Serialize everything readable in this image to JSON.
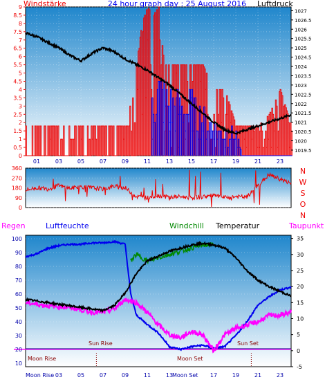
{
  "title": "24 hour graph day : 25 August 2016",
  "colors": {
    "red": "#ee0000",
    "blue": "#0000ee",
    "black": "#000000",
    "green": "#008800",
    "magenta": "#ff00ff",
    "navy": "#000080",
    "bg_top": "#2a8fd0",
    "bg_bottom": "#ffffff"
  },
  "chart_data": [
    {
      "type": "bar",
      "name": "wind-and-pressure",
      "left_label": "Windstärke",
      "right_label": "Luftdruck",
      "left_ticks": [
        0,
        0.5,
        1,
        1.5,
        2,
        2.5,
        3,
        3.5,
        4,
        4.5,
        5,
        5.5,
        6,
        6.5,
        7,
        7.5,
        8,
        8.5,
        9
      ],
      "right_ticks": [
        1019.5,
        1020,
        1020.5,
        1021,
        1021.5,
        1022,
        1022.5,
        1023,
        1023.5,
        1024,
        1024.5,
        1025,
        1025.5,
        1026,
        1026.5,
        1027
      ],
      "x_ticks": [
        "01",
        "03",
        "05",
        "07",
        "09",
        "11",
        "13",
        "15",
        "17",
        "19",
        "21",
        "23"
      ],
      "ylim_left": [
        0,
        9
      ],
      "ylim_right": [
        1019.2,
        1027.2
      ],
      "xlim": [
        0,
        24
      ],
      "gust_red_max": [
        [
          0,
          1.8
        ],
        [
          1,
          1.8
        ],
        [
          2,
          1.8
        ],
        [
          3,
          1.8
        ],
        [
          4,
          1.8
        ],
        [
          5,
          1.8
        ],
        [
          6,
          1.8
        ],
        [
          7,
          1.8
        ],
        [
          8,
          1.8
        ],
        [
          9,
          1.8
        ],
        [
          9.5,
          4
        ],
        [
          10,
          5.5
        ],
        [
          10.5,
          8
        ],
        [
          11,
          9
        ],
        [
          11.5,
          8.5
        ],
        [
          12,
          9
        ],
        [
          12.5,
          5.5
        ],
        [
          13,
          5.5
        ],
        [
          13.5,
          5.5
        ],
        [
          14,
          5.5
        ],
        [
          15,
          5.5
        ],
        [
          16,
          5.5
        ],
        [
          17,
          4
        ],
        [
          18,
          4
        ],
        [
          19,
          1.8
        ],
        [
          20,
          1.8
        ],
        [
          21,
          1.8
        ],
        [
          22,
          2.5
        ],
        [
          23,
          4
        ],
        [
          24,
          1.8
        ]
      ],
      "wind_blue_max": [
        [
          9.5,
          1.8
        ],
        [
          10,
          3
        ],
        [
          10.5,
          4.5
        ],
        [
          11,
          5.5
        ],
        [
          11.5,
          5
        ],
        [
          12,
          5.5
        ],
        [
          13,
          4.5
        ],
        [
          14,
          4
        ],
        [
          15,
          4
        ],
        [
          16,
          3
        ],
        [
          17,
          2.5
        ],
        [
          18,
          1.8
        ],
        [
          19,
          1.8
        ],
        [
          19.5,
          0
        ],
        [
          24,
          0
        ]
      ],
      "pressure": [
        [
          0,
          1025.8
        ],
        [
          1,
          1025.6
        ],
        [
          2,
          1025.3
        ],
        [
          3,
          1025.0
        ],
        [
          4,
          1024.6
        ],
        [
          5,
          1024.3
        ],
        [
          6,
          1024.7
        ],
        [
          7,
          1025.0
        ],
        [
          8,
          1024.8
        ],
        [
          9,
          1024.4
        ],
        [
          10,
          1024.1
        ],
        [
          11,
          1023.8
        ],
        [
          12,
          1023.4
        ],
        [
          13,
          1023.0
        ],
        [
          14,
          1022.5
        ],
        [
          15,
          1022.0
        ],
        [
          16,
          1021.5
        ],
        [
          17,
          1021.0
        ],
        [
          18,
          1020.6
        ],
        [
          19,
          1020.4
        ],
        [
          20,
          1020.6
        ],
        [
          21,
          1020.8
        ],
        [
          22,
          1021.0
        ],
        [
          23,
          1021.2
        ],
        [
          24,
          1021.4
        ]
      ]
    },
    {
      "type": "line",
      "name": "wind-direction",
      "left_ticks": [
        0,
        90,
        180,
        270,
        360
      ],
      "right_labels": [
        "N",
        "W",
        "S",
        "O",
        "N"
      ],
      "ylim": [
        0,
        360
      ],
      "direction": [
        [
          0,
          160
        ],
        [
          1,
          180
        ],
        [
          2,
          170
        ],
        [
          3,
          200
        ],
        [
          4,
          175
        ],
        [
          5,
          190
        ],
        [
          6,
          180
        ],
        [
          7,
          170
        ],
        [
          8,
          195
        ],
        [
          9,
          180
        ],
        [
          10,
          100
        ],
        [
          11,
          90
        ],
        [
          12,
          110
        ],
        [
          13,
          95
        ],
        [
          14,
          100
        ],
        [
          15,
          90
        ],
        [
          16,
          100
        ],
        [
          17,
          110
        ],
        [
          18,
          90
        ],
        [
          19,
          100
        ],
        [
          20,
          95
        ],
        [
          21,
          200
        ],
        [
          22,
          300
        ],
        [
          23,
          260
        ],
        [
          24,
          220
        ]
      ]
    },
    {
      "type": "line",
      "name": "temperature-humidity",
      "series_labels": [
        "Regen",
        "Luftfeuchte",
        "Windchill",
        "Temperatur",
        "Taupunkt"
      ],
      "left_ticks": [
        10,
        20,
        30,
        40,
        50,
        60,
        70,
        80,
        90,
        100
      ],
      "right_ticks": [
        -5,
        0,
        5,
        10,
        15,
        20,
        25,
        30,
        35
      ],
      "ylim_left": [
        10,
        100
      ],
      "ylim_right": [
        -5,
        36
      ],
      "annotations": [
        "Moon Rise",
        "Sun Rise",
        "Moon Set",
        "Sun Set",
        "Moon Rise",
        "Moon Set"
      ],
      "x_ticks": [
        "01",
        "03",
        "05",
        "07",
        "09",
        "11",
        "13",
        "15",
        "17",
        "19",
        "21",
        "23"
      ],
      "humidity": [
        [
          0,
          87
        ],
        [
          1,
          89
        ],
        [
          2,
          93
        ],
        [
          3,
          95
        ],
        [
          4,
          96
        ],
        [
          5,
          96
        ],
        [
          6,
          97
        ],
        [
          7,
          97
        ],
        [
          8,
          98
        ],
        [
          9,
          96
        ],
        [
          9.5,
          60
        ],
        [
          10,
          45
        ],
        [
          11,
          38
        ],
        [
          12,
          32
        ],
        [
          13,
          22
        ],
        [
          14,
          20
        ],
        [
          15,
          22
        ],
        [
          16,
          23
        ],
        [
          17,
          21
        ],
        [
          18,
          22
        ],
        [
          19,
          30
        ],
        [
          20,
          40
        ],
        [
          21,
          52
        ],
        [
          22,
          58
        ],
        [
          23,
          63
        ],
        [
          24,
          65
        ]
      ],
      "temperature": [
        [
          0,
          16
        ],
        [
          1,
          15.5
        ],
        [
          2,
          15
        ],
        [
          3,
          14.5
        ],
        [
          4,
          14
        ],
        [
          5,
          13.5
        ],
        [
          6,
          13
        ],
        [
          7,
          12.5
        ],
        [
          8,
          14
        ],
        [
          9,
          18
        ],
        [
          10,
          24
        ],
        [
          11,
          28
        ],
        [
          12,
          29.5
        ],
        [
          13,
          31
        ],
        [
          14,
          32
        ],
        [
          15,
          33
        ],
        [
          16,
          33.5
        ],
        [
          17,
          33
        ],
        [
          18,
          32
        ],
        [
          19,
          29
        ],
        [
          20,
          25
        ],
        [
          21,
          22
        ],
        [
          22,
          20
        ],
        [
          23,
          18.5
        ],
        [
          24,
          17
        ]
      ],
      "windchill": [
        [
          9.5,
          28
        ],
        [
          10,
          30
        ],
        [
          11,
          28
        ],
        [
          12,
          29
        ],
        [
          13,
          30
        ],
        [
          14,
          31
        ],
        [
          15,
          32
        ],
        [
          16,
          33
        ],
        [
          17,
          33
        ]
      ],
      "dewpoint": [
        [
          0,
          15
        ],
        [
          2,
          14
        ],
        [
          4,
          13.5
        ],
        [
          6,
          12
        ],
        [
          7,
          12
        ],
        [
          8,
          13
        ],
        [
          9,
          16
        ],
        [
          10,
          15
        ],
        [
          11,
          12
        ],
        [
          12,
          8
        ],
        [
          13,
          5
        ],
        [
          14,
          4
        ],
        [
          15,
          6
        ],
        [
          16,
          5
        ],
        [
          17,
          0
        ],
        [
          18,
          5
        ],
        [
          19,
          7
        ],
        [
          20,
          8
        ],
        [
          21,
          9
        ],
        [
          22,
          11
        ],
        [
          23,
          11
        ],
        [
          24,
          12
        ]
      ],
      "rain_level": 0
    }
  ],
  "labels": {
    "windstaerke": "Windstärke",
    "luftdruck": "Luftdruck",
    "regen": "Regen",
    "luftfeuchte": "Luftfeuchte",
    "windchill": "Windchill",
    "temperatur": "Temperatur",
    "taupunkt": "Taupunkt",
    "moon_rise_1": "Moon Rise",
    "sun_rise": "Sun Rise",
    "moon_set": "Moon Set",
    "sun_set": "Sun Set",
    "moon_rise_axis": "Moon Rise",
    "moon_set_axis": "Moon Set"
  }
}
